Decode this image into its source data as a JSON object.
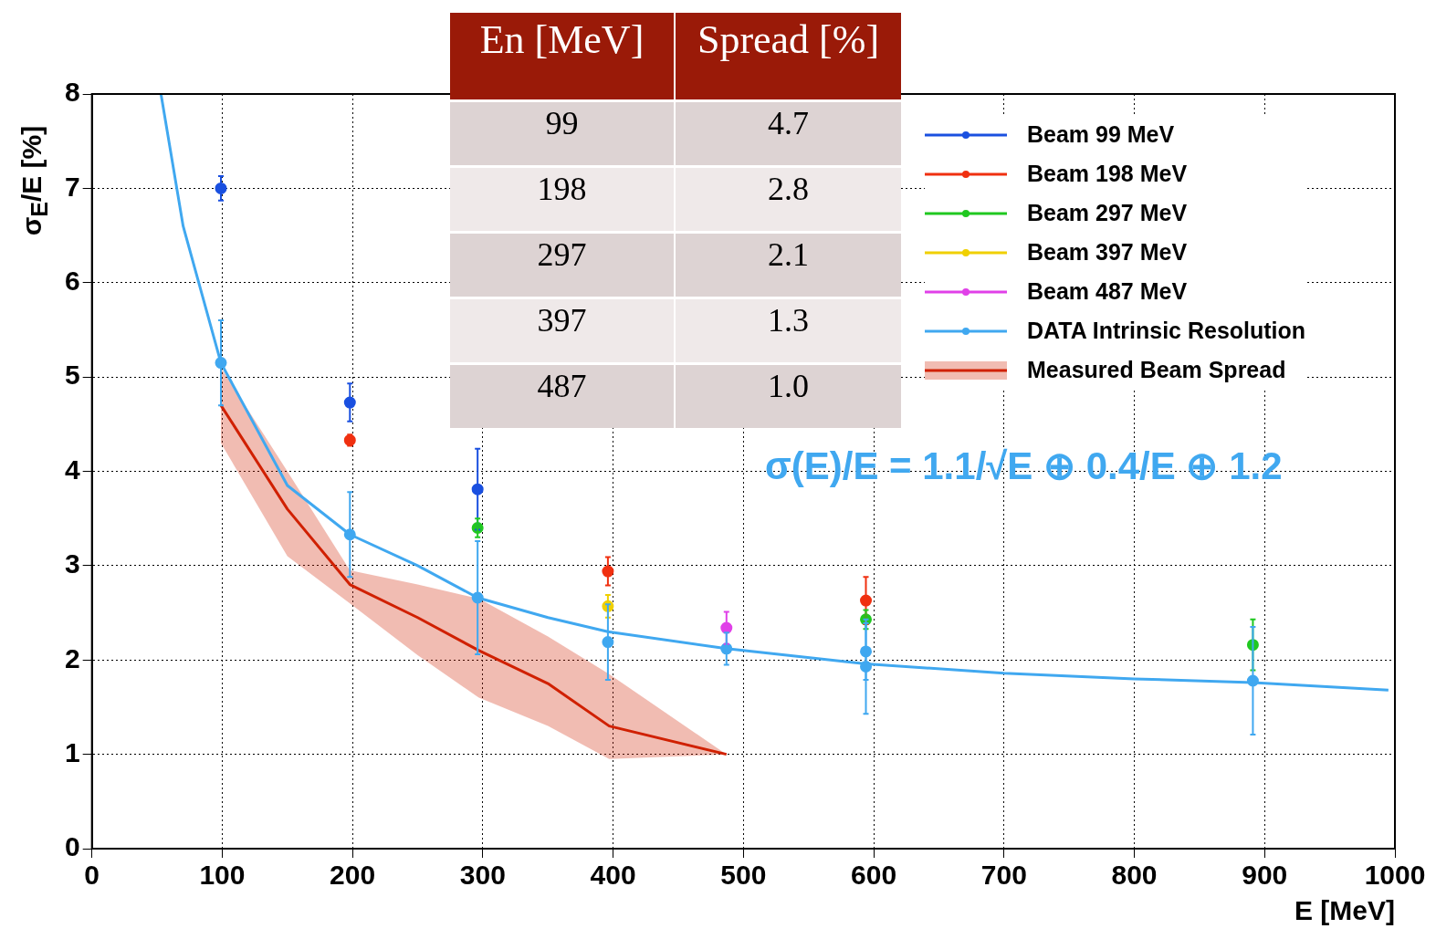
{
  "chart_data": [
    {
      "type": "scatter",
      "xlabel": "E [MeV]",
      "ylabel": "σ$_{E}$/E [%]",
      "xlim": [
        0,
        1000
      ],
      "xticks": [
        0,
        100,
        200,
        300,
        400,
        500,
        600,
        700,
        800,
        900,
        1000
      ],
      "ylim": [
        0,
        8
      ],
      "yticks": [
        0,
        1,
        2,
        3,
        4,
        5,
        6,
        7,
        8
      ],
      "grid": true,
      "legend": "top right",
      "annotations": [
        "σ(E)/E = 1.1/√E ⊕ 0.4/E ⊕ 1.2"
      ],
      "series": [
        {
          "name": "Beam 99 MeV",
          "type": "scatter",
          "marker": "circle",
          "color": "#1a50e0",
          "x": [
            99,
            198,
            296
          ],
          "values": [
            7.0,
            4.73,
            3.81
          ],
          "errors": [
            0.13,
            0.2,
            0.43
          ]
        },
        {
          "name": "Beam 198 MeV",
          "type": "scatter",
          "marker": "circle",
          "color": "#f03010",
          "x": [
            198,
            396,
            594
          ],
          "values": [
            4.33,
            2.94,
            2.63
          ],
          "errors": [
            0.06,
            0.15,
            0.25
          ]
        },
        {
          "name": "Beam 297 MeV",
          "type": "scatter",
          "marker": "circle",
          "color": "#20c820",
          "x": [
            296,
            594,
            891
          ],
          "values": [
            3.4,
            2.43,
            2.16
          ],
          "errors": [
            0.1,
            0.1,
            0.27
          ]
        },
        {
          "name": "Beam 397 MeV",
          "type": "scatter",
          "marker": "circle",
          "color": "#f0d000",
          "x": [
            396
          ],
          "values": [
            2.57
          ],
          "errors": [
            0.12
          ]
        },
        {
          "name": "Beam 487 MeV",
          "type": "scatter",
          "marker": "circle",
          "color": "#e040e8",
          "x": [
            487
          ],
          "values": [
            2.34
          ],
          "errors": [
            0.17
          ]
        },
        {
          "name": "DATA Intrinsic Resolution",
          "type": "scatter",
          "marker": "circle",
          "color": "#40a8f0",
          "x": [
            99,
            198,
            296,
            396,
            487,
            594,
            594,
            891
          ],
          "values": [
            5.15,
            3.33,
            2.66,
            2.19,
            2.12,
            2.09,
            1.93,
            1.78
          ],
          "errors": [
            0.45,
            0.45,
            0.6,
            0.4,
            0.17,
            0.3,
            0.5,
            0.57
          ]
        },
        {
          "type": "line",
          "marker": "none",
          "color": "#40a8f0",
          "x": [
            53,
            70,
            99,
            150,
            198,
            250,
            296,
            350,
            396,
            487,
            594,
            700,
            800,
            891,
            995
          ],
          "values": [
            8.0,
            6.6,
            5.15,
            3.85,
            3.33,
            3.0,
            2.66,
            2.45,
            2.3,
            2.12,
            1.96,
            1.86,
            1.8,
            1.76,
            1.68
          ]
        },
        {
          "name": "Measured Beam Spread",
          "type": "line",
          "marker": "none",
          "color": "#d02000",
          "x": [
            99,
            150,
            198,
            250,
            297,
            350,
            397,
            487
          ],
          "values": [
            4.7,
            3.6,
            2.8,
            2.45,
            2.1,
            1.75,
            1.3,
            1.0
          ],
          "lower": [
            4.3,
            3.1,
            2.6,
            2.05,
            1.6,
            1.3,
            0.95,
            1.0
          ],
          "upper": [
            5.1,
            4.0,
            2.95,
            2.8,
            2.65,
            2.25,
            1.85,
            1.0
          ]
        }
      ]
    },
    {
      "type": "other",
      "annotations": [
        "En [MeV]",
        "Spread [%]",
        "99",
        "4.7",
        "198",
        "2.8",
        "297",
        "2.1",
        "397",
        "1.3",
        "487",
        "1.0"
      ]
    }
  ]
}
